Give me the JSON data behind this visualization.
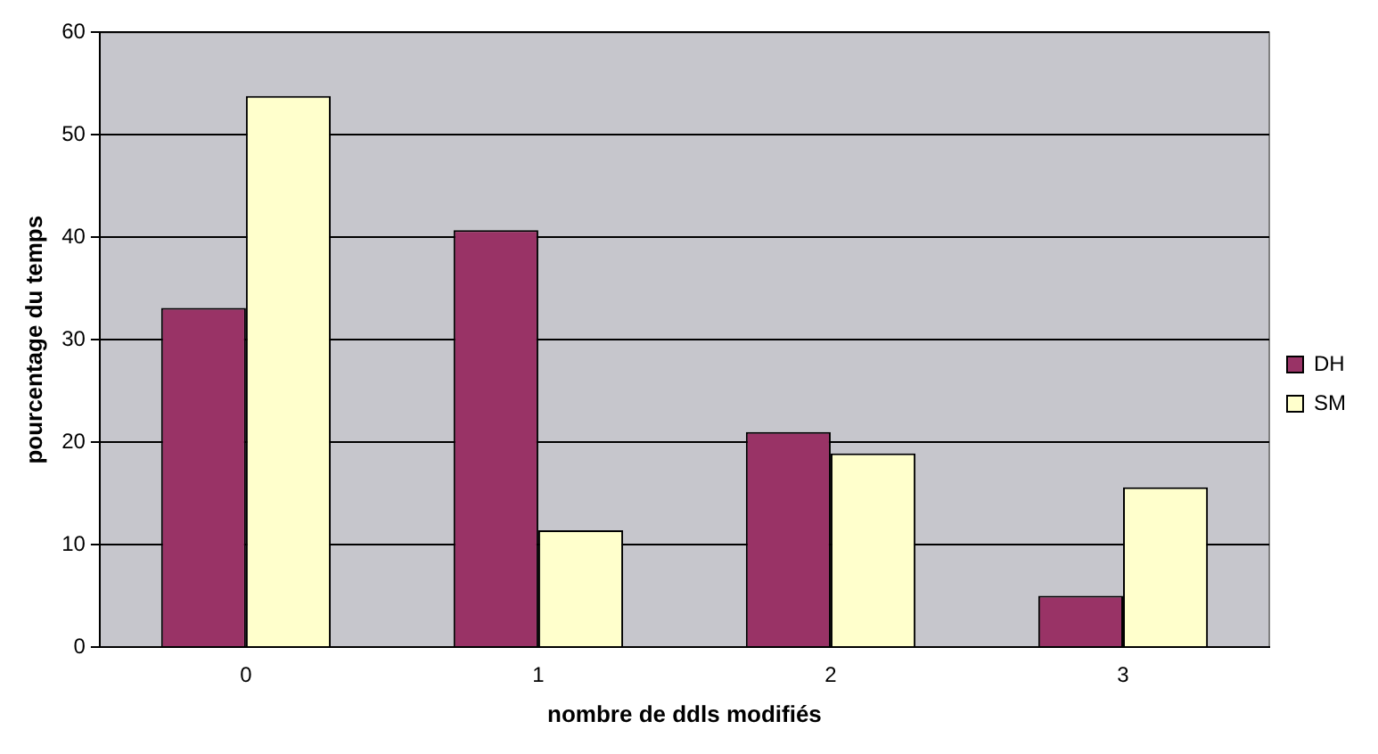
{
  "chart_data": {
    "type": "bar",
    "xlabel": "nombre de ddls modifiés",
    "ylabel": "pourcentage du temps",
    "categories": [
      "0",
      "1",
      "2",
      "3"
    ],
    "series": [
      {
        "name": "DH",
        "color": "#993366",
        "values": [
          33.1,
          40.7,
          21.0,
          5.0
        ]
      },
      {
        "name": "SM",
        "color": "#ffffcc",
        "values": [
          53.8,
          11.4,
          18.9,
          15.6
        ]
      }
    ],
    "ylim": [
      0,
      60
    ],
    "yticks": [
      0,
      10,
      20,
      30,
      40,
      50,
      60
    ],
    "grid": "y",
    "legend": "right"
  }
}
